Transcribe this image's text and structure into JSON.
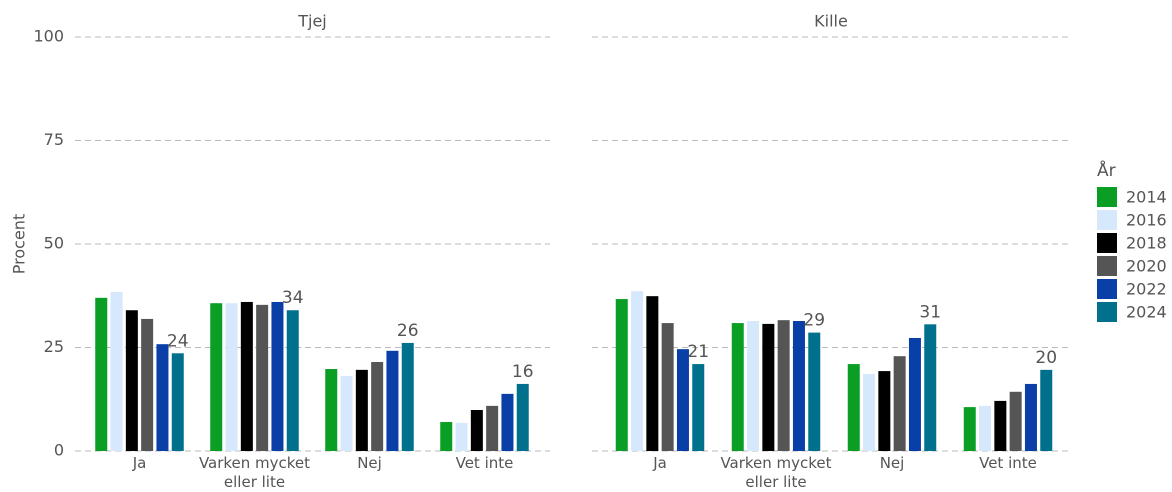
{
  "chart_data": [
    {
      "type": "bar",
      "title": "Tjej",
      "y_label": "Procent",
      "legend_title": "År",
      "categories": [
        "Ja",
        "Varken mycket eller lite",
        "Nej",
        "Vet inte"
      ],
      "ylim": [
        0,
        100
      ],
      "yticks": [
        0,
        25,
        50,
        75,
        100
      ],
      "grid": true,
      "series": [
        {
          "name": "2014",
          "color": "#0a9e24",
          "values": [
            37,
            35.7,
            19.8,
            7
          ]
        },
        {
          "name": "2016",
          "color": "#d6e8fb",
          "values": [
            38.4,
            35.7,
            18.1,
            6.8
          ]
        },
        {
          "name": "2018",
          "color": "#000000",
          "values": [
            34,
            36,
            19.6,
            9.9
          ]
        },
        {
          "name": "2020",
          "color": "#555555",
          "values": [
            31.9,
            35.3,
            21.5,
            10.9
          ]
        },
        {
          "name": "2022",
          "color": "#0a3fa8",
          "values": [
            25.8,
            36,
            24.2,
            13.8
          ]
        },
        {
          "name": "2024",
          "color": "#00708c",
          "values": [
            23.6,
            34,
            26.1,
            16.2
          ],
          "value_labels": [
            "24",
            "34",
            "26",
            "16"
          ]
        }
      ]
    },
    {
      "type": "bar",
      "title": "Kille",
      "categories": [
        "Ja",
        "Varken mycket eller lite",
        "Nej",
        "Vet inte"
      ],
      "ylim": [
        0,
        100
      ],
      "yticks": [
        0,
        25,
        50,
        75,
        100
      ],
      "grid": true,
      "series": [
        {
          "name": "2014",
          "color": "#0a9e24",
          "values": [
            36.7,
            30.9,
            21,
            10.6
          ]
        },
        {
          "name": "2016",
          "color": "#d6e8fb",
          "values": [
            38.6,
            31.4,
            18.6,
            10.9
          ]
        },
        {
          "name": "2018",
          "color": "#000000",
          "values": [
            37.4,
            30.7,
            19.3,
            12.1
          ]
        },
        {
          "name": "2020",
          "color": "#555555",
          "values": [
            30.9,
            31.6,
            22.9,
            14.3
          ]
        },
        {
          "name": "2022",
          "color": "#0a3fa8",
          "values": [
            24.6,
            31.4,
            27.3,
            16.2
          ]
        },
        {
          "name": "2024",
          "color": "#00708c",
          "values": [
            21,
            28.6,
            30.6,
            19.6
          ],
          "value_labels": [
            "21",
            "29",
            "31",
            "20"
          ]
        }
      ]
    }
  ]
}
